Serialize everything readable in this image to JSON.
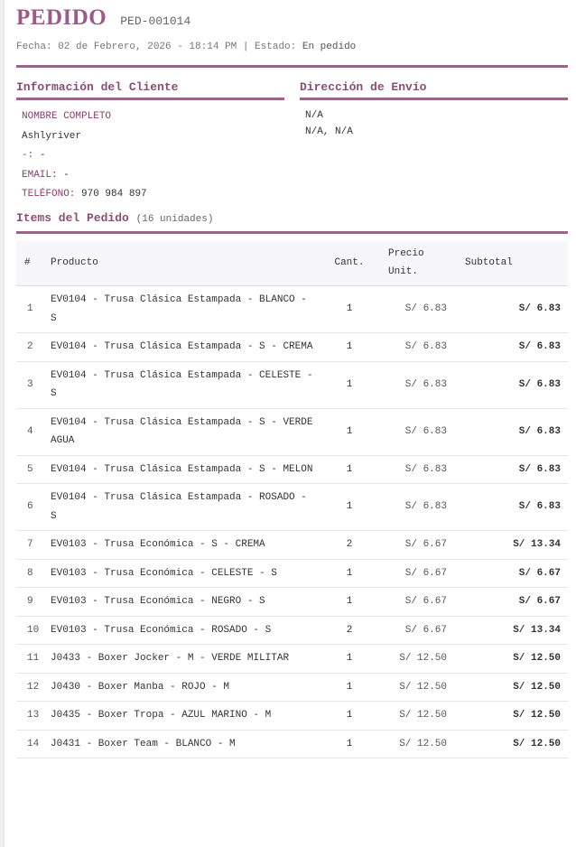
{
  "header": {
    "title": "PEDIDO",
    "code": "PED-001014",
    "meta": "Fecha: 02 de Febrero, 2026 - 18:14 PM | Estado:",
    "status": "En pedido"
  },
  "client": {
    "heading": "Información del Cliente",
    "name_label": "NOMBRE COMPLETO",
    "name": "Ashlyriver",
    "doc_label": "-:",
    "doc": "-",
    "email_label": "EMAIL:",
    "email": "-",
    "phone_label": "TELÉFONO:",
    "phone": "970 984 897"
  },
  "shipping": {
    "heading": "Dirección de Envío",
    "line1": "N/A",
    "line2": "N/A, N/A"
  },
  "items": {
    "heading": "Items del Pedido",
    "count": "(16 unidades)",
    "columns": [
      "#",
      "Producto",
      "Cant.",
      "Precio Unit.",
      "Subtotal"
    ],
    "rows": [
      {
        "n": "1",
        "product": "EV0104 - Trusa Clásica Estampada - BLANCO - S",
        "qty": "1",
        "unit": "S/ 6.83",
        "subtotal": "S/ 6.83"
      },
      {
        "n": "2",
        "product": "EV0104 - Trusa Clásica Estampada - S - CREMA",
        "qty": "1",
        "unit": "S/ 6.83",
        "subtotal": "S/ 6.83"
      },
      {
        "n": "3",
        "product": "EV0104 - Trusa Clásica Estampada - CELESTE - S",
        "qty": "1",
        "unit": "S/ 6.83",
        "subtotal": "S/ 6.83"
      },
      {
        "n": "4",
        "product": "EV0104 - Trusa Clásica Estampada - S - VERDE AGUA",
        "qty": "1",
        "unit": "S/ 6.83",
        "subtotal": "S/ 6.83"
      },
      {
        "n": "5",
        "product": "EV0104 - Trusa Clásica Estampada - S - MELON",
        "qty": "1",
        "unit": "S/ 6.83",
        "subtotal": "S/ 6.83"
      },
      {
        "n": "6",
        "product": "EV0104 - Trusa Clásica Estampada - ROSADO - S",
        "qty": "1",
        "unit": "S/ 6.83",
        "subtotal": "S/ 6.83"
      },
      {
        "n": "7",
        "product": "EV0103 - Trusa Económica - S - CREMA",
        "qty": "2",
        "unit": "S/ 6.67",
        "subtotal": "S/ 13.34"
      },
      {
        "n": "8",
        "product": "EV0103 - Trusa Económica - CELESTE - S",
        "qty": "1",
        "unit": "S/ 6.67",
        "subtotal": "S/ 6.67"
      },
      {
        "n": "9",
        "product": "EV0103 - Trusa Económica - NEGRO - S",
        "qty": "1",
        "unit": "S/ 6.67",
        "subtotal": "S/ 6.67"
      },
      {
        "n": "10",
        "product": "EV0103 - Trusa Económica - ROSADO - S",
        "qty": "2",
        "unit": "S/ 6.67",
        "subtotal": "S/ 13.34"
      },
      {
        "n": "11",
        "product": "J0433 - Boxer Jocker - M - VERDE MILITAR",
        "qty": "1",
        "unit": "S/ 12.50",
        "subtotal": "S/ 12.50"
      },
      {
        "n": "12",
        "product": "J0430 - Boxer Manba - ROJO - M",
        "qty": "1",
        "unit": "S/ 12.50",
        "subtotal": "S/ 12.50"
      },
      {
        "n": "13",
        "product": "J0435 - Boxer Tropa - AZUL MARINO - M",
        "qty": "1",
        "unit": "S/ 12.50",
        "subtotal": "S/ 12.50"
      },
      {
        "n": "14",
        "product": "J0431 - Boxer Team - BLANCO - M",
        "qty": "1",
        "unit": "S/ 12.50",
        "subtotal": "S/ 12.50"
      }
    ]
  },
  "colors": {
    "accent": "#9b5b87"
  }
}
